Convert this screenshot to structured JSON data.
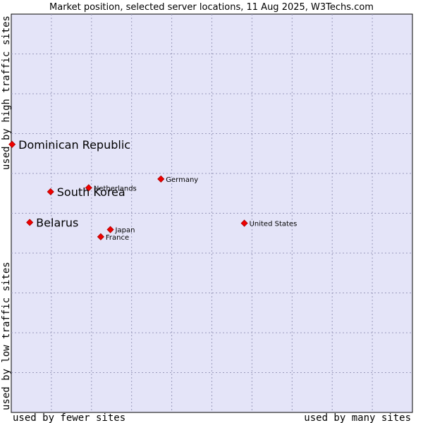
{
  "chart_data": {
    "type": "scatter",
    "title": "Market position, selected server locations, 11 Aug 2025, W3Techs.com",
    "xlabel_left": "used by fewer sites",
    "xlabel_right": "used by many sites",
    "ylabel_top": "used by high traffic sites",
    "ylabel_bottom": "used by low traffic sites",
    "xlim": [
      0,
      100
    ],
    "ylim": [
      0,
      100
    ],
    "grid": true,
    "colors": {
      "plot_bg": "#e4e4f8",
      "grid": "#9999bb",
      "marker": "#ee0000",
      "marker_edge": "#aa0000"
    },
    "points": [
      {
        "name": "Dominican Republic",
        "x": 0.2,
        "y": 67.3,
        "emphasis": true
      },
      {
        "name": "South Korea",
        "x": 9.8,
        "y": 55.4,
        "emphasis": true
      },
      {
        "name": "Belarus",
        "x": 4.6,
        "y": 47.7,
        "emphasis": true
      },
      {
        "name": "Netherlands",
        "x": 19.3,
        "y": 56.4,
        "emphasis": false
      },
      {
        "name": "Germany",
        "x": 37.3,
        "y": 58.6,
        "emphasis": false
      },
      {
        "name": "Japan",
        "x": 24.7,
        "y": 45.9,
        "emphasis": false
      },
      {
        "name": "France",
        "x": 22.3,
        "y": 44.1,
        "emphasis": false
      },
      {
        "name": "United States",
        "x": 58.1,
        "y": 47.5,
        "emphasis": false
      }
    ]
  }
}
